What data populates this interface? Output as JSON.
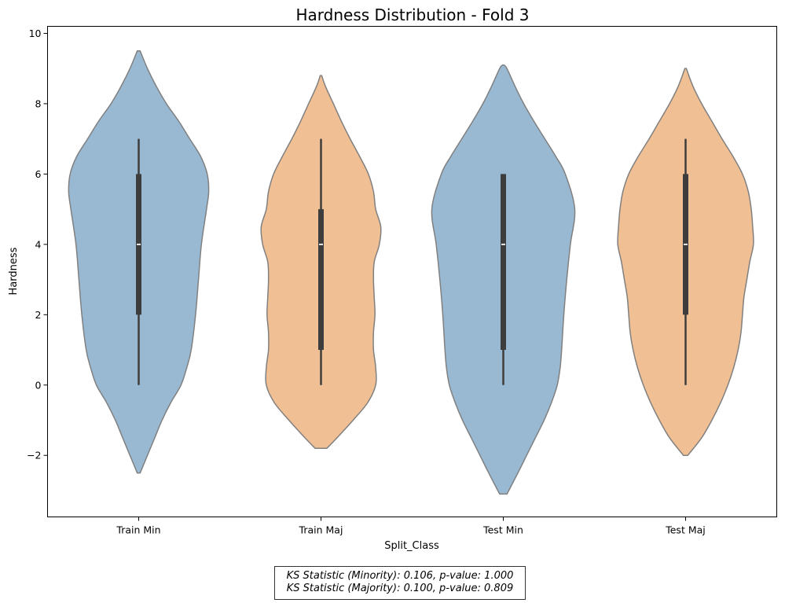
{
  "chart_data": {
    "type": "violin",
    "title": "Hardness Distribution - Fold 3",
    "xlabel": "Split_Class",
    "ylabel": "Hardness",
    "ylim": [
      -3.75,
      10.2
    ],
    "yticks": [
      -2,
      0,
      2,
      4,
      6,
      8,
      10
    ],
    "ytick_labels": [
      "−2",
      "0",
      "2",
      "4",
      "6",
      "8",
      "10"
    ],
    "grid": false,
    "categories": [
      "Train Min",
      "Train Maj",
      "Test Min",
      "Test Maj"
    ],
    "series": [
      {
        "category": "Train Min",
        "color": "#99b9d3",
        "box": {
          "min": 0,
          "q1": 2,
          "median": 4,
          "q3": 6,
          "max": 7
        },
        "density_range": [
          -2.5,
          9.5
        ],
        "density_y": [
          -2.5,
          -2.0,
          -1.5,
          -1.0,
          -0.5,
          0,
          0.5,
          1,
          2,
          3,
          4,
          5,
          5.5,
          6,
          6.5,
          7,
          7.5,
          8,
          8.5,
          9,
          9.5
        ],
        "density_w": [
          0.02,
          0.12,
          0.22,
          0.32,
          0.44,
          0.58,
          0.66,
          0.72,
          0.78,
          0.82,
          0.86,
          0.93,
          0.96,
          0.94,
          0.85,
          0.7,
          0.55,
          0.38,
          0.24,
          0.12,
          0.02
        ]
      },
      {
        "category": "Train Maj",
        "color": "#f0bf94",
        "box": {
          "min": 0,
          "q1": 1,
          "median": 4,
          "q3": 5,
          "max": 7
        },
        "density_range": [
          -1.8,
          8.8
        ],
        "density_y": [
          -1.8,
          -1.5,
          -1.0,
          -0.5,
          0,
          0.5,
          1,
          1.5,
          2,
          2.5,
          3,
          3.5,
          4,
          4.5,
          5,
          5.5,
          6,
          6.5,
          7,
          7.5,
          8,
          8.5,
          8.8
        ],
        "density_w": [
          0.08,
          0.22,
          0.44,
          0.64,
          0.75,
          0.75,
          0.72,
          0.72,
          0.74,
          0.73,
          0.72,
          0.73,
          0.8,
          0.82,
          0.75,
          0.72,
          0.65,
          0.53,
          0.4,
          0.28,
          0.17,
          0.06,
          0.01
        ]
      },
      {
        "category": "Test Min",
        "color": "#99b9d3",
        "box": {
          "min": 0,
          "q1": 1,
          "median": 4,
          "q3": 6,
          "max": 6
        },
        "density_range": [
          -3.1,
          9.1
        ],
        "density_y": [
          -3.1,
          -2.5,
          -2.0,
          -1.5,
          -1.0,
          -0.5,
          0,
          0.5,
          1,
          2,
          3,
          4,
          5,
          6,
          6.5,
          7,
          7.5,
          8,
          8.5,
          9,
          9.1
        ],
        "density_w": [
          0.05,
          0.2,
          0.32,
          0.44,
          0.56,
          0.66,
          0.74,
          0.78,
          0.8,
          0.83,
          0.87,
          0.92,
          0.98,
          0.85,
          0.72,
          0.57,
          0.42,
          0.28,
          0.16,
          0.05,
          0.01
        ]
      },
      {
        "category": "Test Maj",
        "color": "#f0bf94",
        "box": {
          "min": 0,
          "q1": 2,
          "median": 4,
          "q3": 6,
          "max": 7
        },
        "density_range": [
          -2.0,
          9.0
        ],
        "density_y": [
          -2.0,
          -1.5,
          -1.0,
          -0.5,
          0,
          0.5,
          1,
          1.5,
          2,
          2.5,
          3,
          3.5,
          4,
          4.5,
          5,
          5.5,
          6,
          6.5,
          7,
          7.5,
          8,
          8.5,
          9.0
        ],
        "density_w": [
          0.03,
          0.22,
          0.36,
          0.48,
          0.58,
          0.66,
          0.72,
          0.76,
          0.78,
          0.8,
          0.84,
          0.88,
          0.93,
          0.92,
          0.9,
          0.86,
          0.78,
          0.65,
          0.5,
          0.36,
          0.22,
          0.1,
          0.01
        ]
      }
    ],
    "annotation": {
      "line1": "KS Statistic (Minority): 0.106, p-value: 1.000",
      "line2": "KS Statistic (Majority): 0.100, p-value: 0.809"
    }
  }
}
